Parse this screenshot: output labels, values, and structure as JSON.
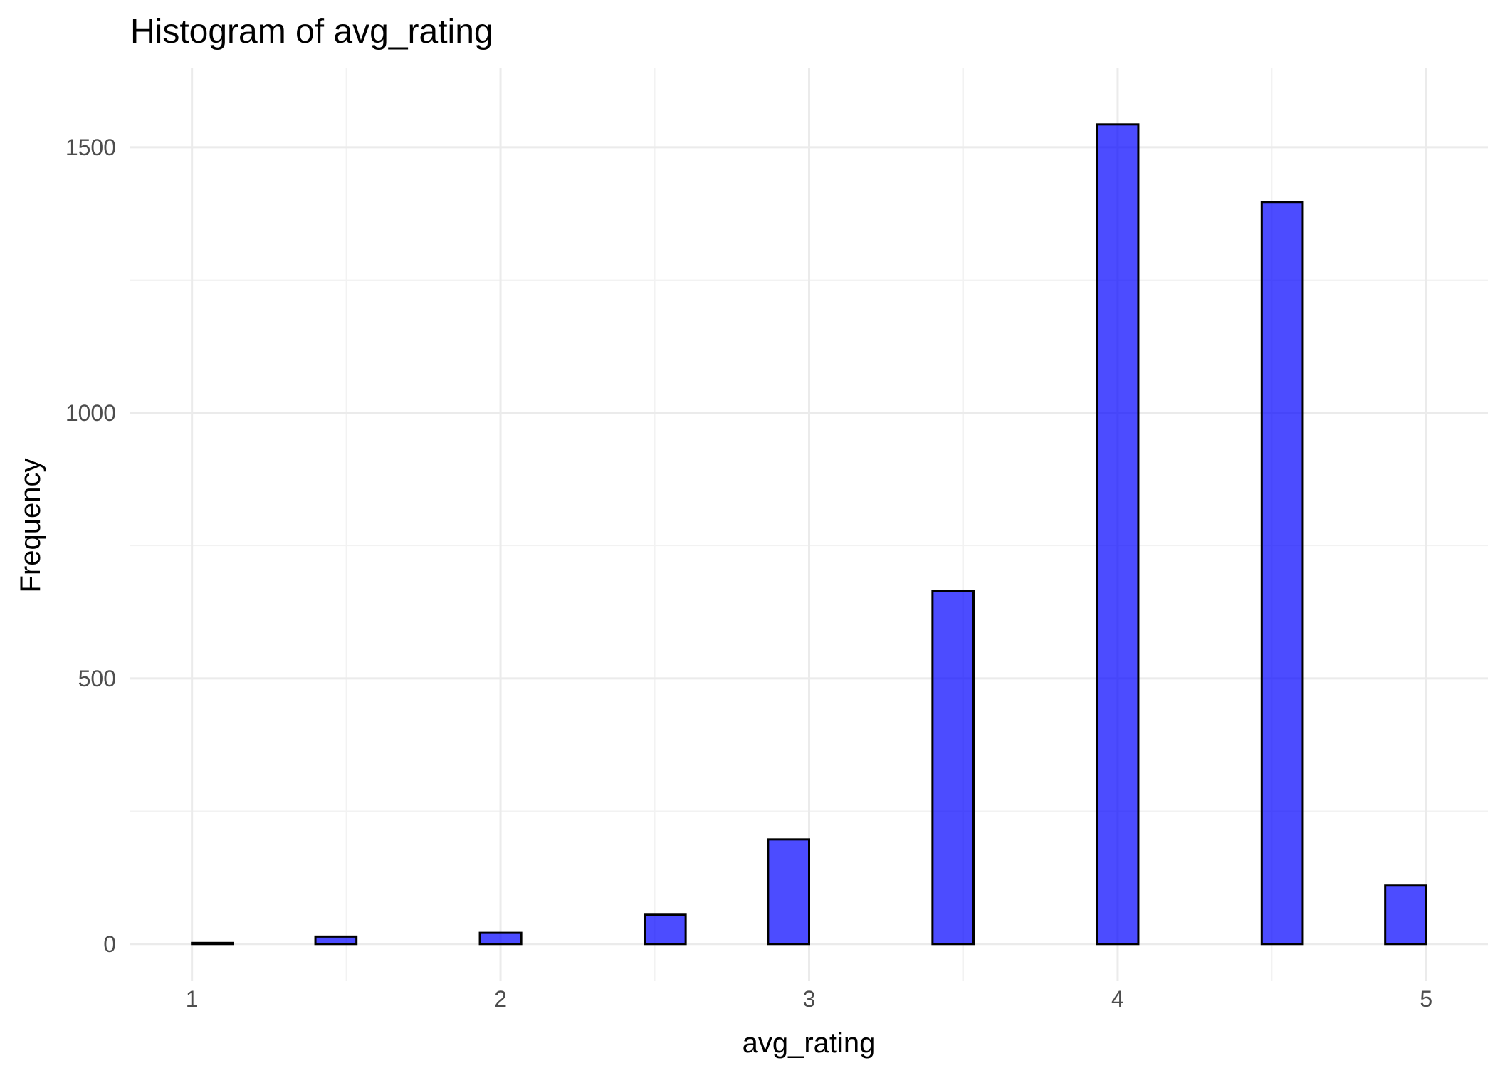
{
  "chart_data": {
    "type": "histogram",
    "title": "Histogram of avg_rating",
    "xlabel": "avg_rating",
    "ylabel": "Frequency",
    "xlim": [
      0.8,
      5.2
    ],
    "ylim": [
      -70,
      1650
    ],
    "x_ticks": [
      1,
      2,
      3,
      4,
      5
    ],
    "x_tick_labels": [
      "1",
      "2",
      "3",
      "4",
      "5"
    ],
    "x_minor_ticks": [
      1.5,
      2.5,
      3.5,
      4.5
    ],
    "y_ticks": [
      0,
      500,
      1000,
      1500
    ],
    "y_tick_labels": [
      "0",
      "500",
      "1000",
      "1500"
    ],
    "y_minor_ticks": [
      250,
      750,
      1250
    ],
    "bin_width": 0.1333,
    "bins": [
      {
        "x_start": 1.0,
        "x_end": 1.133,
        "count": 2
      },
      {
        "x_start": 1.133,
        "x_end": 1.267,
        "count": 0
      },
      {
        "x_start": 1.267,
        "x_end": 1.4,
        "count": 0
      },
      {
        "x_start": 1.4,
        "x_end": 1.533,
        "count": 14
      },
      {
        "x_start": 1.533,
        "x_end": 1.667,
        "count": 0
      },
      {
        "x_start": 1.667,
        "x_end": 1.8,
        "count": 0
      },
      {
        "x_start": 1.8,
        "x_end": 1.933,
        "count": 0
      },
      {
        "x_start": 1.933,
        "x_end": 2.067,
        "count": 21
      },
      {
        "x_start": 2.067,
        "x_end": 2.2,
        "count": 0
      },
      {
        "x_start": 2.2,
        "x_end": 2.333,
        "count": 0
      },
      {
        "x_start": 2.333,
        "x_end": 2.467,
        "count": 0
      },
      {
        "x_start": 2.467,
        "x_end": 2.6,
        "count": 55
      },
      {
        "x_start": 2.6,
        "x_end": 2.733,
        "count": 0
      },
      {
        "x_start": 2.733,
        "x_end": 2.867,
        "count": 0
      },
      {
        "x_start": 2.867,
        "x_end": 3.0,
        "count": 197
      },
      {
        "x_start": 3.0,
        "x_end": 3.133,
        "count": 0
      },
      {
        "x_start": 3.133,
        "x_end": 3.267,
        "count": 0
      },
      {
        "x_start": 3.267,
        "x_end": 3.4,
        "count": 0
      },
      {
        "x_start": 3.4,
        "x_end": 3.533,
        "count": 665
      },
      {
        "x_start": 3.533,
        "x_end": 3.667,
        "count": 0
      },
      {
        "x_start": 3.667,
        "x_end": 3.8,
        "count": 0
      },
      {
        "x_start": 3.8,
        "x_end": 3.933,
        "count": 0
      },
      {
        "x_start": 3.933,
        "x_end": 4.067,
        "count": 1543
      },
      {
        "x_start": 4.067,
        "x_end": 4.2,
        "count": 0
      },
      {
        "x_start": 4.2,
        "x_end": 4.333,
        "count": 0
      },
      {
        "x_start": 4.333,
        "x_end": 4.467,
        "count": 0
      },
      {
        "x_start": 4.467,
        "x_end": 4.6,
        "count": 1397
      },
      {
        "x_start": 4.6,
        "x_end": 4.733,
        "count": 0
      },
      {
        "x_start": 4.733,
        "x_end": 4.867,
        "count": 0
      },
      {
        "x_start": 4.867,
        "x_end": 5.0,
        "count": 110
      }
    ],
    "colors": {
      "bar_fill": "#0000ff",
      "bar_stroke": "#000000",
      "grid": "#ebebeb"
    }
  }
}
